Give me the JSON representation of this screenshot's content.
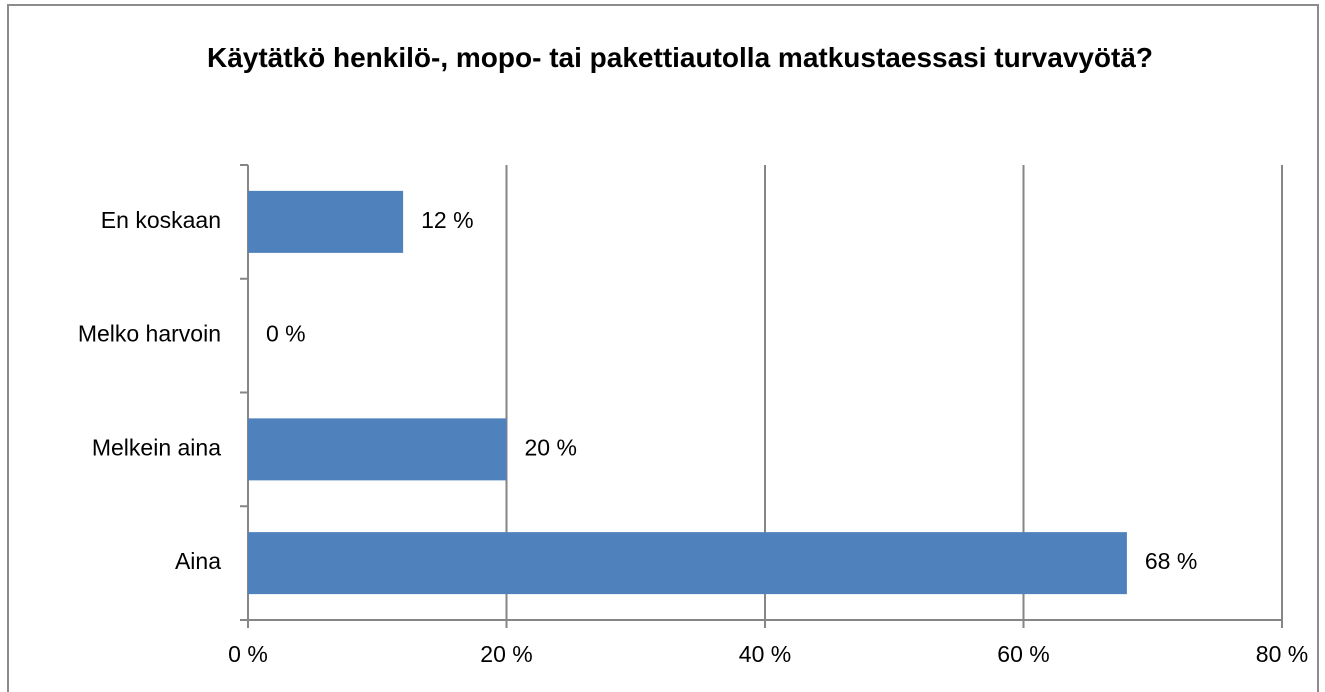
{
  "chart_data": {
    "type": "bar",
    "orientation": "horizontal",
    "title": "Käytätkö henkilö-, mopo- tai pakettiautolla matkustaessasi turvavyötä?",
    "categories": [
      "En koskaan",
      "Melko harvoin",
      "Melkein aina",
      "Aina"
    ],
    "values": [
      12,
      0,
      20,
      68
    ],
    "value_labels": [
      "12 %",
      "0 %",
      "20 %",
      "68 %"
    ],
    "color": "#4f81bd",
    "xlim": [
      0,
      80
    ],
    "xticks": [
      {
        "value": 0,
        "label": "0 %"
      },
      {
        "value": 20,
        "label": "20 %"
      },
      {
        "value": 40,
        "label": "40 %"
      },
      {
        "value": 60,
        "label": "60 %"
      },
      {
        "value": 80,
        "label": "80 %"
      }
    ],
    "grid": true
  }
}
